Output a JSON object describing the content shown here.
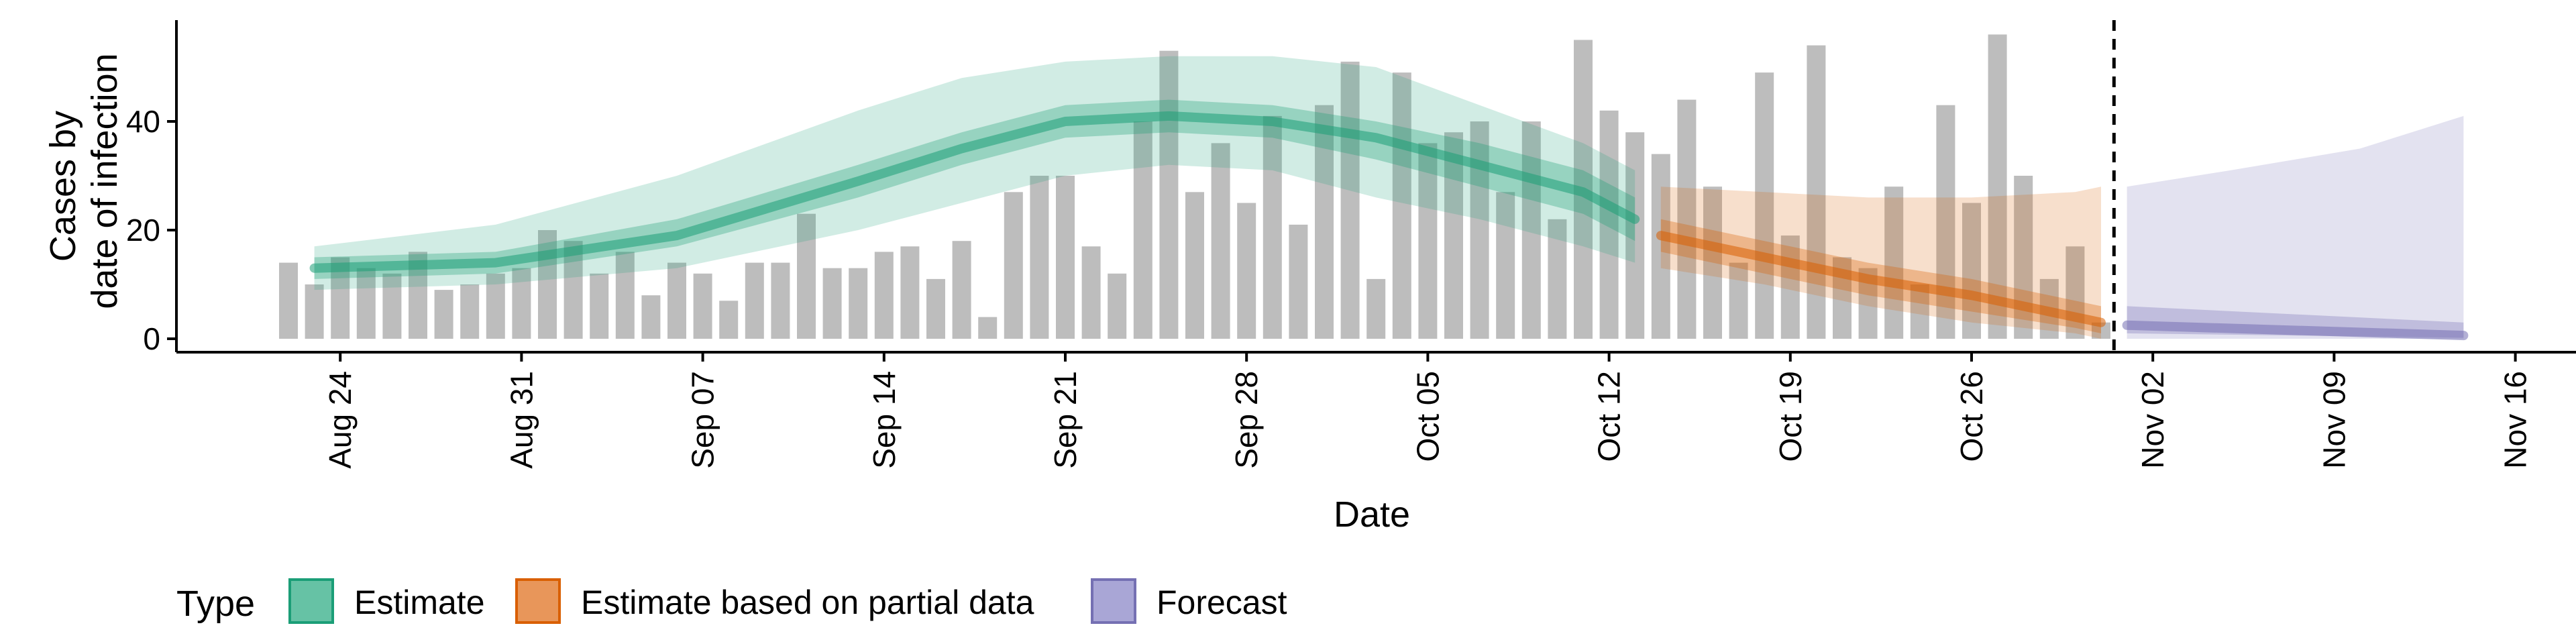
{
  "chart_data": {
    "type": "bar+ribbon",
    "xlabel": "Date",
    "ylabel": "Cases by\ndate of infection",
    "ylabel_lines": [
      "Cases by",
      "date of infection"
    ],
    "ylim": [
      0,
      58
    ],
    "y_ticks": [
      0,
      20,
      40
    ],
    "x_ticks": [
      "Aug 24",
      "Aug 31",
      "Sep 07",
      "Sep 14",
      "Sep 21",
      "Sep 28",
      "Oct 05",
      "Oct 12",
      "Oct 19",
      "Oct 26",
      "Nov 02",
      "Nov 09",
      "Nov 16"
    ],
    "x_start_date": "2020-08-22",
    "forecast_start_date": "2020-10-31",
    "grid": false,
    "legend_position": "bottom",
    "legend": {
      "title": "Type",
      "items": [
        {
          "label": "Estimate",
          "fill": "#66c2a5",
          "border": "#1b9e77"
        },
        {
          "label": "Estimate based on partial data",
          "fill": "#e8965a",
          "border": "#d95f02"
        },
        {
          "label": "Forecast",
          "fill": "#a9a6d6",
          "border": "#7570b3"
        }
      ]
    },
    "colors": {
      "bars": "#bdbdbd",
      "estimate": "#1b9e77",
      "partial": "#d95f02",
      "forecast": "#7570b3"
    },
    "bars": [
      {
        "date": "2020-08-22",
        "value": 14
      },
      {
        "date": "2020-08-23",
        "value": 10
      },
      {
        "date": "2020-08-24",
        "value": 15
      },
      {
        "date": "2020-08-25",
        "value": 13
      },
      {
        "date": "2020-08-26",
        "value": 12
      },
      {
        "date": "2020-08-27",
        "value": 16
      },
      {
        "date": "2020-08-28",
        "value": 9
      },
      {
        "date": "2020-08-29",
        "value": 10
      },
      {
        "date": "2020-08-30",
        "value": 12
      },
      {
        "date": "2020-08-31",
        "value": 13
      },
      {
        "date": "2020-09-01",
        "value": 20
      },
      {
        "date": "2020-09-02",
        "value": 18
      },
      {
        "date": "2020-09-03",
        "value": 12
      },
      {
        "date": "2020-09-04",
        "value": 16
      },
      {
        "date": "2020-09-05",
        "value": 8
      },
      {
        "date": "2020-09-06",
        "value": 14
      },
      {
        "date": "2020-09-07",
        "value": 12
      },
      {
        "date": "2020-09-08",
        "value": 7
      },
      {
        "date": "2020-09-09",
        "value": 14
      },
      {
        "date": "2020-09-10",
        "value": 14
      },
      {
        "date": "2020-09-11",
        "value": 23
      },
      {
        "date": "2020-09-12",
        "value": 13
      },
      {
        "date": "2020-09-13",
        "value": 13
      },
      {
        "date": "2020-09-14",
        "value": 16
      },
      {
        "date": "2020-09-15",
        "value": 17
      },
      {
        "date": "2020-09-16",
        "value": 11
      },
      {
        "date": "2020-09-17",
        "value": 18
      },
      {
        "date": "2020-09-18",
        "value": 4
      },
      {
        "date": "2020-09-19",
        "value": 27
      },
      {
        "date": "2020-09-20",
        "value": 30
      },
      {
        "date": "2020-09-21",
        "value": 30
      },
      {
        "date": "2020-09-22",
        "value": 17
      },
      {
        "date": "2020-09-23",
        "value": 12
      },
      {
        "date": "2020-09-24",
        "value": 40
      },
      {
        "date": "2020-09-25",
        "value": 53
      },
      {
        "date": "2020-09-26",
        "value": 27
      },
      {
        "date": "2020-09-27",
        "value": 36
      },
      {
        "date": "2020-09-28",
        "value": 25
      },
      {
        "date": "2020-09-29",
        "value": 41
      },
      {
        "date": "2020-09-30",
        "value": 21
      },
      {
        "date": "2020-10-01",
        "value": 43
      },
      {
        "date": "2020-10-02",
        "value": 51
      },
      {
        "date": "2020-10-03",
        "value": 11
      },
      {
        "date": "2020-10-04",
        "value": 49
      },
      {
        "date": "2020-10-05",
        "value": 36
      },
      {
        "date": "2020-10-06",
        "value": 38
      },
      {
        "date": "2020-10-07",
        "value": 40
      },
      {
        "date": "2020-10-08",
        "value": 27
      },
      {
        "date": "2020-10-09",
        "value": 40
      },
      {
        "date": "2020-10-10",
        "value": 22
      },
      {
        "date": "2020-10-11",
        "value": 55
      },
      {
        "date": "2020-10-12",
        "value": 42
      },
      {
        "date": "2020-10-13",
        "value": 38
      },
      {
        "date": "2020-10-14",
        "value": 34
      },
      {
        "date": "2020-10-15",
        "value": 44
      },
      {
        "date": "2020-10-16",
        "value": 28
      },
      {
        "date": "2020-10-17",
        "value": 14
      },
      {
        "date": "2020-10-18",
        "value": 49
      },
      {
        "date": "2020-10-19",
        "value": 19
      },
      {
        "date": "2020-10-20",
        "value": 54
      },
      {
        "date": "2020-10-21",
        "value": 15
      },
      {
        "date": "2020-10-22",
        "value": 13
      },
      {
        "date": "2020-10-23",
        "value": 28
      },
      {
        "date": "2020-10-24",
        "value": 10
      },
      {
        "date": "2020-10-25",
        "value": 43
      },
      {
        "date": "2020-10-26",
        "value": 25
      },
      {
        "date": "2020-10-27",
        "value": 56
      },
      {
        "date": "2020-10-28",
        "value": 30
      },
      {
        "date": "2020-10-29",
        "value": 11
      },
      {
        "date": "2020-10-30",
        "value": 17
      },
      {
        "date": "2020-10-31",
        "value": 3
      }
    ],
    "series": [
      {
        "name": "Estimate",
        "date_range": [
          "2020-08-23",
          "2020-10-13"
        ],
        "median": [
          [
            0,
            13
          ],
          [
            7,
            14
          ],
          [
            14,
            19
          ],
          [
            21,
            29
          ],
          [
            25,
            35
          ],
          [
            29,
            40
          ],
          [
            33,
            41
          ],
          [
            37,
            40
          ],
          [
            41,
            37
          ],
          [
            45,
            32
          ],
          [
            49,
            27
          ],
          [
            51,
            22
          ]
        ],
        "inner": [
          [
            0,
            11,
            15
          ],
          [
            7,
            12,
            16
          ],
          [
            14,
            17,
            22
          ],
          [
            21,
            26,
            32
          ],
          [
            25,
            32,
            38
          ],
          [
            29,
            37,
            43
          ],
          [
            33,
            38,
            44
          ],
          [
            37,
            37,
            43
          ],
          [
            41,
            33,
            40
          ],
          [
            45,
            28,
            36
          ],
          [
            49,
            23,
            31
          ],
          [
            51,
            18,
            26
          ]
        ],
        "outer": [
          [
            0,
            9,
            17
          ],
          [
            7,
            10,
            21
          ],
          [
            14,
            13,
            30
          ],
          [
            21,
            20,
            42
          ],
          [
            25,
            25,
            48
          ],
          [
            29,
            30,
            51
          ],
          [
            33,
            32,
            52
          ],
          [
            37,
            31,
            52
          ],
          [
            41,
            26,
            50
          ],
          [
            45,
            22,
            43
          ],
          [
            49,
            17,
            36
          ],
          [
            51,
            14,
            31
          ]
        ]
      },
      {
        "name": "Estimate based on partial data",
        "date_range": [
          "2020-10-14",
          "2020-10-31"
        ],
        "median": [
          [
            0,
            19
          ],
          [
            4,
            15
          ],
          [
            8,
            11
          ],
          [
            12,
            8
          ],
          [
            16,
            4
          ],
          [
            17,
            3
          ]
        ],
        "inner": [
          [
            0,
            16,
            22
          ],
          [
            4,
            12,
            18
          ],
          [
            8,
            8,
            14
          ],
          [
            12,
            5,
            11
          ],
          [
            16,
            2,
            7
          ],
          [
            17,
            1,
            6
          ]
        ],
        "outer": [
          [
            0,
            13,
            28
          ],
          [
            4,
            10,
            27
          ],
          [
            8,
            6,
            26
          ],
          [
            12,
            3,
            26
          ],
          [
            16,
            1,
            27
          ],
          [
            17,
            0,
            28
          ]
        ]
      },
      {
        "name": "Forecast",
        "date_range": [
          "2020-11-01",
          "2020-11-14"
        ],
        "median": [
          [
            0,
            2.5
          ],
          [
            13,
            0.6
          ]
        ],
        "inner": [
          [
            0,
            1,
            6
          ],
          [
            13,
            0.2,
            3
          ]
        ],
        "outer": [
          [
            0,
            0,
            28
          ],
          [
            4,
            0,
            31
          ],
          [
            9,
            0,
            35
          ],
          [
            13,
            0,
            41
          ]
        ]
      }
    ]
  }
}
